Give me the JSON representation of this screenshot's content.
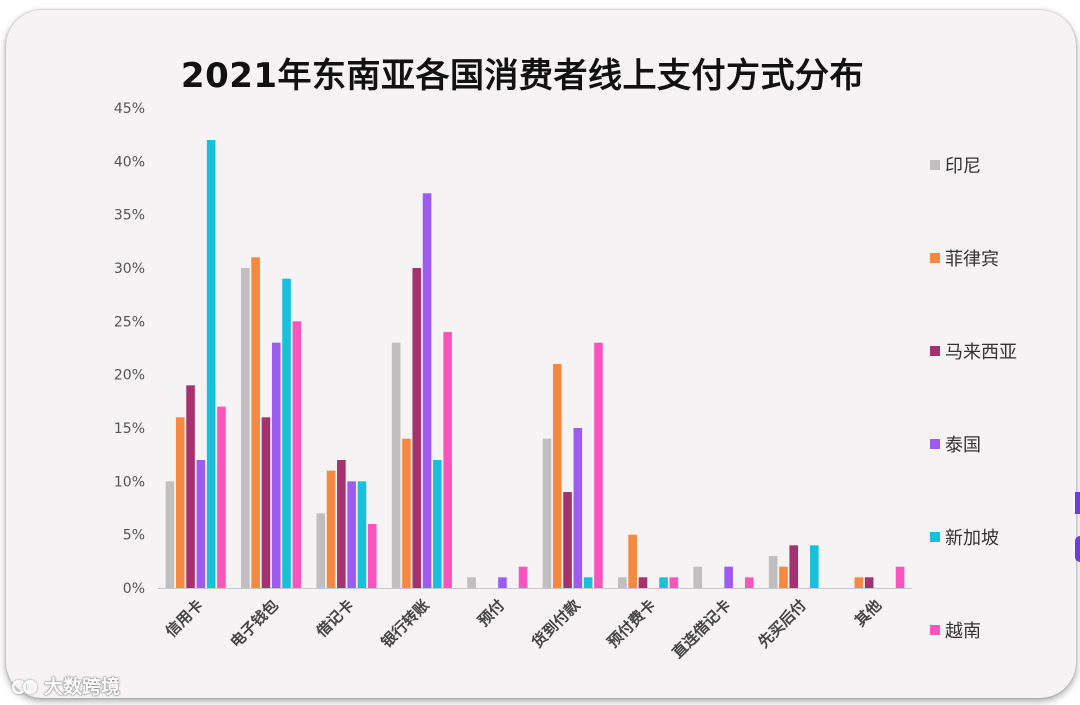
{
  "chart_data": {
    "type": "bar",
    "title": "2021年东南亚各国消费者线上支付方式分布",
    "xlabel": "",
    "ylabel": "",
    "ylim": [
      0,
      45
    ],
    "yticks": [
      "0%",
      "5%",
      "10%",
      "15%",
      "20%",
      "25%",
      "30%",
      "35%",
      "40%",
      "45%"
    ],
    "grid": false,
    "legend_position": "right",
    "categories": [
      "信用卡",
      "电子钱包",
      "借记卡",
      "银行转账",
      "预付",
      "货到付款",
      "预付费卡",
      "直连借记卡",
      "先买后付",
      "其他"
    ],
    "series": [
      {
        "name": "印尼",
        "color": "#c0bebe",
        "values": [
          10,
          30,
          7,
          23,
          1,
          14,
          1,
          2,
          3,
          0
        ]
      },
      {
        "name": "菲律宾",
        "color": "#f4893f",
        "values": [
          16,
          31,
          11,
          14,
          0,
          21,
          5,
          0,
          2,
          1
        ]
      },
      {
        "name": "马来西亚",
        "color": "#a5316e",
        "values": [
          19,
          16,
          12,
          30,
          0,
          9,
          1,
          0,
          4,
          1
        ]
      },
      {
        "name": "泰国",
        "color": "#9c5cf0",
        "values": [
          12,
          23,
          10,
          37,
          1,
          15,
          0,
          2,
          0,
          0
        ]
      },
      {
        "name": "新加坡",
        "color": "#19c0dc",
        "values": [
          42,
          29,
          10,
          12,
          0,
          1,
          1,
          0,
          4,
          0
        ]
      },
      {
        "name": "越南",
        "color": "#f955bd",
        "values": [
          17,
          25,
          6,
          24,
          2,
          23,
          1,
          1,
          0,
          2
        ]
      }
    ]
  },
  "watermark": {
    "icon": "bubble-logo-icon",
    "text": "大数跨境"
  }
}
